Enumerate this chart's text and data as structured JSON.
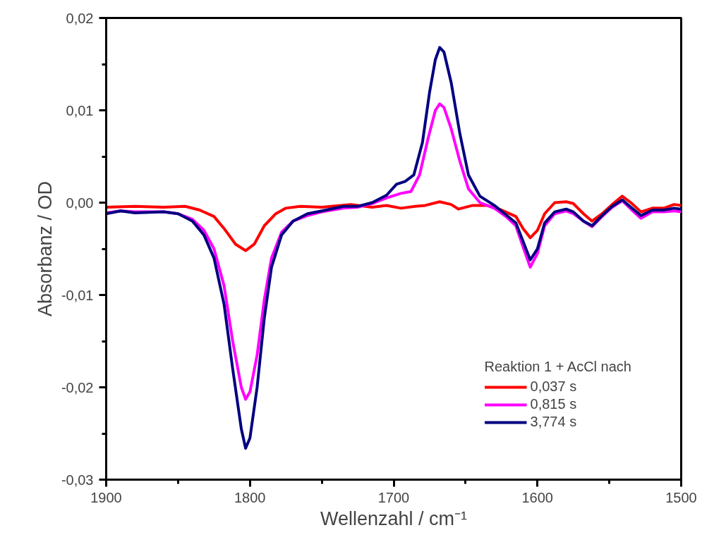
{
  "chart_data": {
    "type": "line",
    "xlabel": "Wellenzahl / cm⁻¹",
    "ylabel": "Absorbanz / OD",
    "legend_title": "Reaktion 1 + AcCl nach",
    "legend": "bottom right",
    "grid": false,
    "line_style": "solid",
    "marker": "none",
    "xlim": [
      1900,
      1500
    ],
    "ylim": [
      -0.03,
      0.02
    ],
    "xticks": [
      1900,
      1800,
      1700,
      1600,
      1500
    ],
    "yticks": [
      {
        "value": -0.03,
        "label": "-0,03"
      },
      {
        "value": -0.02,
        "label": "-0,02"
      },
      {
        "value": -0.01,
        "label": "-0,01"
      },
      {
        "value": 0,
        "label": "0,00"
      },
      {
        "value": 0.01,
        "label": "0,01"
      },
      {
        "value": 0.02,
        "label": "0,02"
      }
    ],
    "series": [
      {
        "name": "0,037 s",
        "color": "#ff0000",
        "x": [
          1900,
          1880,
          1860,
          1845,
          1835,
          1825,
          1818,
          1810,
          1803,
          1797,
          1790,
          1782,
          1775,
          1765,
          1750,
          1730,
          1715,
          1705,
          1695,
          1685,
          1678,
          1668,
          1660,
          1655,
          1645,
          1635,
          1625,
          1615,
          1610,
          1605,
          1600,
          1595,
          1588,
          1580,
          1575,
          1568,
          1562,
          1555,
          1548,
          1541,
          1535,
          1528,
          1520,
          1512,
          1505,
          1500
        ],
        "values": [
          -0.0005,
          -0.0004,
          -0.0005,
          -0.0004,
          -0.0008,
          -0.0015,
          -0.0028,
          -0.0045,
          -0.0052,
          -0.0045,
          -0.0025,
          -0.0012,
          -0.0006,
          -0.0004,
          -0.0005,
          -0.0002,
          -0.0005,
          -0.0003,
          -0.0006,
          -0.0004,
          -0.0003,
          0.0001,
          -0.0002,
          -0.0007,
          -0.0003,
          -0.0003,
          -0.0008,
          -0.0015,
          -0.0028,
          -0.0038,
          -0.003,
          -0.0012,
          0.0,
          0.0001,
          -0.0001,
          -0.0012,
          -0.002,
          -0.0012,
          -0.0002,
          0.0007,
          0.0,
          -0.001,
          -0.0006,
          -0.0006,
          -0.0002,
          -0.0003
        ]
      },
      {
        "name": "0,815 s",
        "color": "#ff00ff",
        "x": [
          1900,
          1890,
          1880,
          1860,
          1850,
          1840,
          1832,
          1825,
          1818,
          1812,
          1806,
          1803,
          1800,
          1795,
          1790,
          1785,
          1778,
          1770,
          1760,
          1750,
          1735,
          1725,
          1715,
          1705,
          1695,
          1688,
          1682,
          1676,
          1671,
          1668,
          1665,
          1660,
          1654,
          1648,
          1640,
          1630,
          1622,
          1615,
          1610,
          1605,
          1600,
          1595,
          1588,
          1580,
          1575,
          1568,
          1562,
          1555,
          1548,
          1541,
          1535,
          1528,
          1520,
          1512,
          1505,
          1500
        ],
        "values": [
          -0.0011,
          -0.0009,
          -0.001,
          -0.001,
          -0.0012,
          -0.0018,
          -0.003,
          -0.005,
          -0.009,
          -0.015,
          -0.02,
          -0.0213,
          -0.0205,
          -0.0165,
          -0.0105,
          -0.006,
          -0.0032,
          -0.002,
          -0.0014,
          -0.001,
          -0.0006,
          -0.0005,
          -0.0001,
          0.0005,
          0.001,
          0.0012,
          0.003,
          0.007,
          0.01,
          0.0107,
          0.0103,
          0.008,
          0.0045,
          0.0015,
          0.0,
          -0.0006,
          -0.0015,
          -0.0025,
          -0.0048,
          -0.007,
          -0.0055,
          -0.0025,
          -0.0012,
          -0.0009,
          -0.0012,
          -0.002,
          -0.0026,
          -0.0015,
          -0.0005,
          0.0002,
          -0.0007,
          -0.0017,
          -0.001,
          -0.001,
          -0.0009,
          -0.001
        ]
      },
      {
        "name": "3,774 s",
        "color": "#000080",
        "x": [
          1900,
          1890,
          1880,
          1860,
          1850,
          1840,
          1832,
          1825,
          1818,
          1812,
          1806,
          1803,
          1800,
          1795,
          1790,
          1785,
          1778,
          1770,
          1760,
          1750,
          1735,
          1725,
          1715,
          1705,
          1698,
          1692,
          1686,
          1680,
          1675,
          1671,
          1668,
          1665,
          1660,
          1654,
          1648,
          1640,
          1630,
          1622,
          1615,
          1610,
          1605,
          1600,
          1595,
          1588,
          1580,
          1575,
          1568,
          1562,
          1555,
          1548,
          1541,
          1535,
          1528,
          1520,
          1512,
          1505,
          1500
        ],
        "values": [
          -0.0012,
          -0.0009,
          -0.0011,
          -0.001,
          -0.0012,
          -0.002,
          -0.0035,
          -0.006,
          -0.011,
          -0.018,
          -0.0245,
          -0.0266,
          -0.0255,
          -0.02,
          -0.0125,
          -0.007,
          -0.0035,
          -0.002,
          -0.0012,
          -0.0009,
          -0.0004,
          -0.0004,
          0.0,
          0.0008,
          0.002,
          0.0023,
          0.003,
          0.0065,
          0.012,
          0.0155,
          0.0168,
          0.0163,
          0.013,
          0.0075,
          0.003,
          0.0007,
          -0.0003,
          -0.0013,
          -0.0022,
          -0.0042,
          -0.0062,
          -0.005,
          -0.0022,
          -0.001,
          -0.0007,
          -0.001,
          -0.002,
          -0.0025,
          -0.0014,
          -0.0004,
          0.0003,
          -0.0005,
          -0.0014,
          -0.0008,
          -0.0008,
          -0.0006,
          -0.0007
        ]
      }
    ]
  }
}
